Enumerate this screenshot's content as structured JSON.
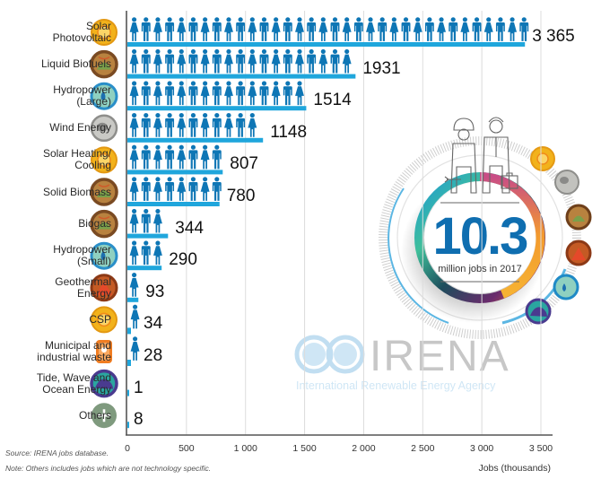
{
  "chart_data": {
    "type": "bar",
    "style": "pictogram",
    "unit_per_figure": 100,
    "categories": [
      "Solar\nPhotovoltaic",
      "Liquid Biofuels",
      "Hydropower\n(Large)",
      "Wind Energy",
      "Solar Heating/\nCooling",
      "Solid Biomass",
      "Biogas",
      "Hydropower\n(Small)",
      "Geothermal\nEnergy",
      "CSP",
      "Municipal and\nindustrial waste",
      "Tide, Wave and\nOcean Energy",
      "Others"
    ],
    "icons": [
      "sun-icon",
      "biofuel-icon",
      "water-drop-icon",
      "wind-icon",
      "sun-icon",
      "biomass-icon",
      "biogas-icon",
      "water-drop-icon",
      "geothermal-icon",
      "sun-icon",
      "waste-bin-icon",
      "wave-icon",
      "plus-icon"
    ],
    "icon_colors": [
      "#f2b21b",
      "#7a4a22",
      "#2a8fc9",
      "#9a9a96",
      "#f2b21b",
      "#7a4a22",
      "#7a4a22",
      "#2a8fc9",
      "#b84b1f",
      "#f2b21b",
      "#f07d22",
      "#4a3b8f",
      "#7f9a7e"
    ],
    "values": [
      3365,
      1931,
      1514,
      1148,
      807,
      780,
      344,
      290,
      93,
      34,
      28,
      1,
      8
    ],
    "value_labels": [
      "3 365",
      "1931",
      "1514",
      "1148",
      "807",
      "780",
      "344",
      "290",
      "93",
      "34",
      "28",
      "1",
      "8"
    ],
    "xlabel": "Jobs (thousands)",
    "xlim": [
      0,
      3500
    ],
    "xticks": [
      0,
      500,
      1000,
      1500,
      2000,
      2500,
      3000,
      3500
    ],
    "xtick_labels": [
      "0",
      "500",
      "1 000",
      "1 500",
      "2 000",
      "2 500",
      "3 000",
      "3 500"
    ],
    "grid": true,
    "colors": {
      "figure": "#0e76b5",
      "base": "#1fa6dc",
      "grid": "#dcdcdc",
      "axis": "#555555"
    }
  },
  "badge": {
    "value": "10.3",
    "caption": "million jobs in 2017",
    "value_color": "#0f6eb0",
    "ring_icons": [
      "sun-icon",
      "wind-icon",
      "biomass-icon",
      "geothermal-icon",
      "water-drop-icon",
      "wave-icon"
    ]
  },
  "logo": {
    "name": "IRENA",
    "tagline": "International Renewable Energy Agency"
  },
  "footer": {
    "source": "Source: IRENA jobs database.",
    "note": "Note: Others includes jobs which are not technology specific."
  }
}
